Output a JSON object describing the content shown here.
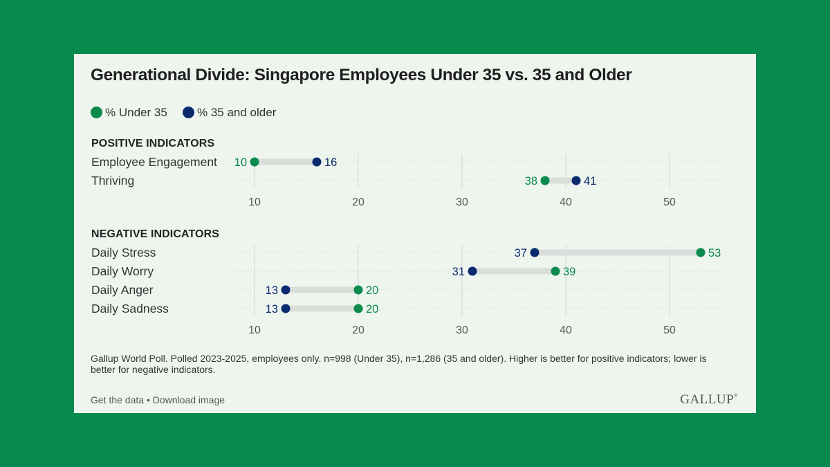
{
  "card": {
    "title": "Generational Divide: Singapore Employees Under 35 vs. 35 and Older",
    "note": "Gallup World Poll. Polled 2023-2025, employees only. n=998 (Under 35), n=1,286 (35 and older). Higher is better for positive indicators; lower is better for negative indicators.",
    "links": {
      "get_data": "Get the data",
      "separator": " • ",
      "download": "Download image"
    },
    "logo": "GALLUP"
  },
  "colors": {
    "under35": "#0a8a4c",
    "older": "#0a2a6e",
    "connector": "#d9dedb",
    "grid": "#cfd6d1",
    "tick_text": "#555555"
  },
  "chart_data": {
    "type": "dot-plot",
    "title": "Generational Divide: Singapore Employees Under 35 vs. 35 and Older",
    "legend": [
      "% Under 35",
      "% 35 and older"
    ],
    "legend_position": "top-left",
    "xlim": [
      8,
      54
    ],
    "xticks": [
      10,
      20,
      30,
      40,
      50
    ],
    "grid": true,
    "panels": [
      {
        "heading": "POSITIVE INDICATORS",
        "categories": [
          "Employee Engagement",
          "Thriving"
        ],
        "series": [
          {
            "name": "% Under 35",
            "values": [
              10,
              38
            ]
          },
          {
            "name": "% 35 and older",
            "values": [
              16,
              41
            ]
          }
        ]
      },
      {
        "heading": "NEGATIVE INDICATORS",
        "categories": [
          "Daily Stress",
          "Daily Worry",
          "Daily Anger",
          "Daily Sadness"
        ],
        "series": [
          {
            "name": "% Under 35",
            "values": [
              53,
              39,
              20,
              20
            ]
          },
          {
            "name": "% 35 and older",
            "values": [
              37,
              31,
              13,
              13
            ]
          }
        ]
      }
    ]
  }
}
